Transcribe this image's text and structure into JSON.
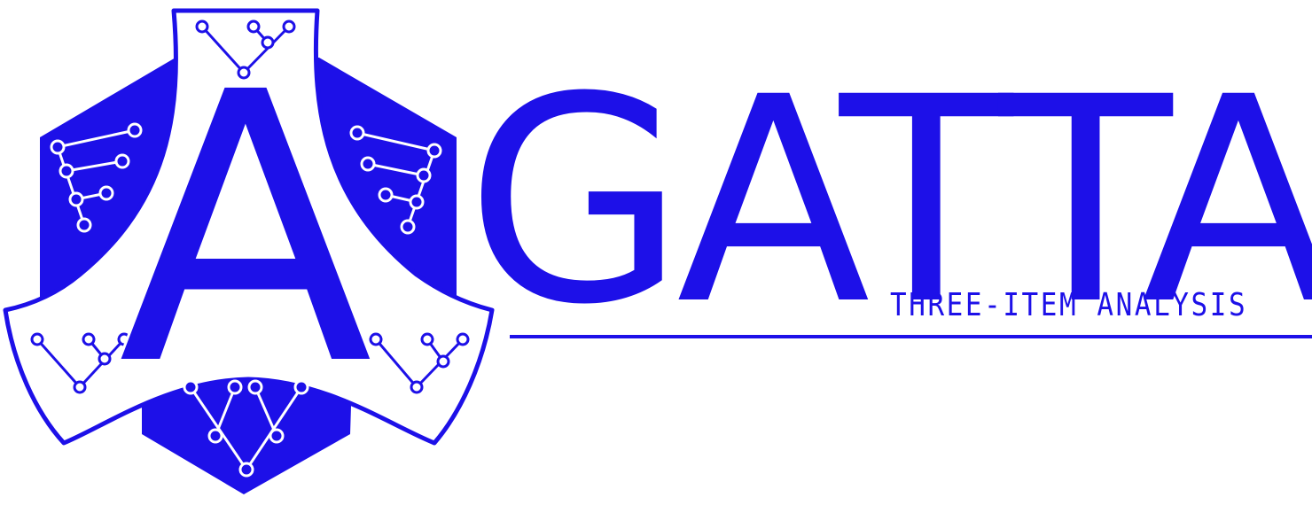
{
  "logo": {
    "emblem_letter": "A",
    "wordmark": "GATTA",
    "tagline": "THREE-ITEM ANALYSIS",
    "emblem_motif": "tree-diagram-icon",
    "colors": {
      "primary": "#1d10e8",
      "background": "#ffffff"
    }
  }
}
